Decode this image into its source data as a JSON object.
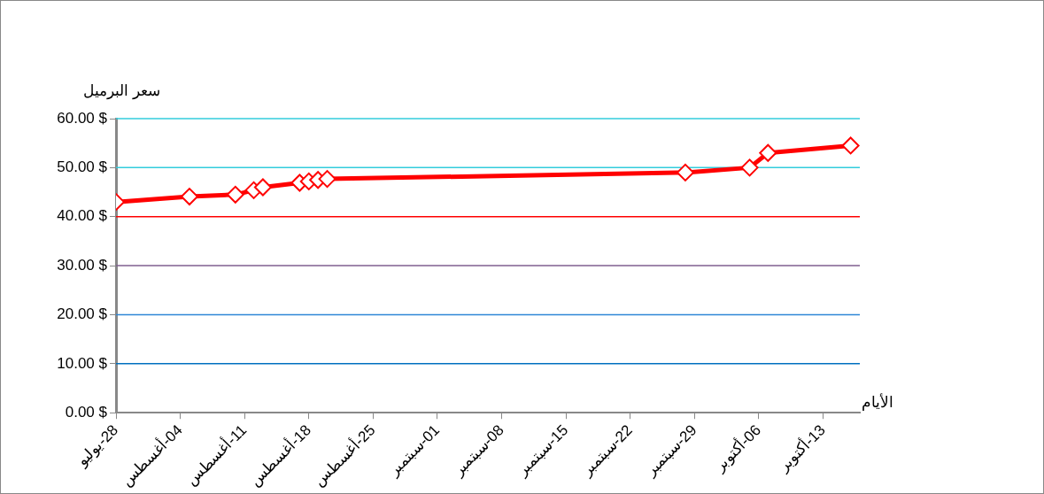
{
  "chart_data": {
    "type": "line",
    "xlabel": "الأيام",
    "ylabel": "سعر البرميل",
    "x": [
      "--07-28",
      "--08-05",
      "--08-10",
      "--08-12",
      "--08-13",
      "--08-17",
      "--08-18",
      "--08-19",
      "--08-20",
      "--09-28",
      "--10-05",
      "--10-07",
      "--10-16"
    ],
    "series": [
      {
        "color": "#ff0000",
        "values": [
          43.0,
          44.1,
          44.5,
          45.4,
          46.0,
          46.9,
          47.2,
          47.5,
          47.7,
          49.0,
          50.0,
          53.0,
          54.5
        ]
      }
    ],
    "marker": "diamond",
    "line_style": "solid",
    "grid": false,
    "legend": false,
    "xlim": [
      "--07-28",
      "--10-17"
    ],
    "xticks": [
      {
        "value": "--07-28",
        "label": "28-يوليو"
      },
      {
        "value": "--08-04",
        "label": "04-أغسطس"
      },
      {
        "value": "--08-11",
        "label": "11-أغسطس"
      },
      {
        "value": "--08-18",
        "label": "18-أغسطس"
      },
      {
        "value": "--08-25",
        "label": "25-أغسطس"
      },
      {
        "value": "--09-01",
        "label": "01-سبتمبر"
      },
      {
        "value": "--09-08",
        "label": "08-سبتمبر"
      },
      {
        "value": "--09-15",
        "label": "15-سبتمبر"
      },
      {
        "value": "--09-22",
        "label": "22-سبتمبر"
      },
      {
        "value": "--09-29",
        "label": "29-سبتمبر"
      },
      {
        "value": "--10-06",
        "label": "06-أكتوبر"
      },
      {
        "value": "--10-13",
        "label": "13-أكتوبر"
      }
    ],
    "ylim": [
      0,
      60
    ],
    "yticks": [
      {
        "value": 0,
        "label": "0.00 $"
      },
      {
        "value": 10,
        "label": "10.00 $"
      },
      {
        "value": 20,
        "label": "20.00 $"
      },
      {
        "value": 30,
        "label": "30.00 $"
      },
      {
        "value": 40,
        "label": "40.00 $"
      },
      {
        "value": 50,
        "label": "50.00 $"
      },
      {
        "value": 60,
        "label": "60.00 $"
      }
    ],
    "ref_lines": [
      {
        "axis": "y",
        "value": 10,
        "color": "#0070c0"
      },
      {
        "axis": "y",
        "value": 20,
        "color": "#2e86d6"
      },
      {
        "axis": "y",
        "value": 30,
        "color": "#7f5f8f"
      },
      {
        "axis": "y",
        "value": 40,
        "color": "#ff0000"
      },
      {
        "axis": "y",
        "value": 50,
        "color": "#33ccdd"
      },
      {
        "axis": "y",
        "value": 60,
        "color": "#33ccdd"
      }
    ]
  }
}
